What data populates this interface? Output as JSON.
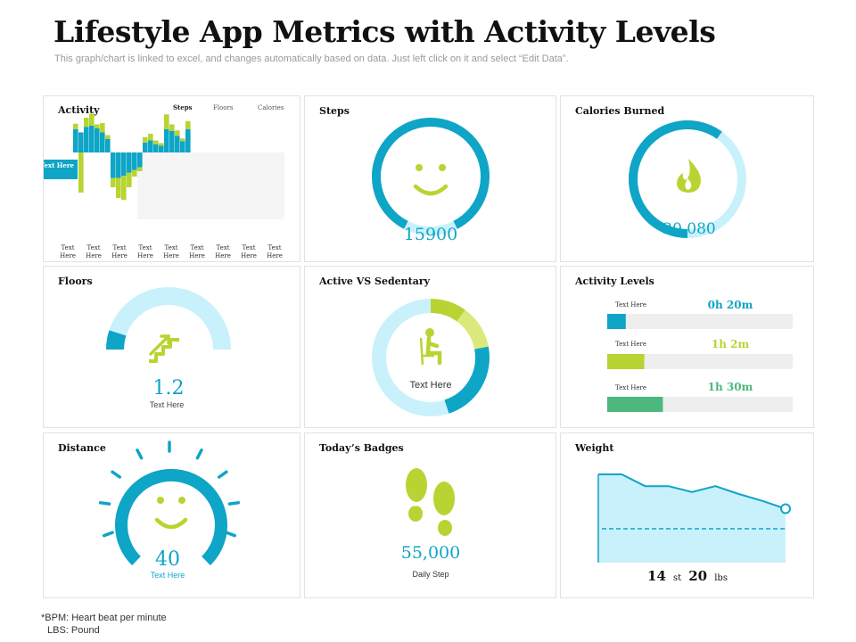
{
  "title": "Lifestyle App Metrics with Activity Levels",
  "subtitle": "This graph/chart is linked to excel, and changes automatically based on data. Just left click on it and select “Edit Data”.",
  "colors": {
    "teal": "#0ea5c6",
    "lime": "#b8d433",
    "light_blue": "#c9f1fb",
    "green": "#4cb87d",
    "grey": "#eeeeee"
  },
  "activity": {
    "title": "Activity",
    "legend": [
      "Steps",
      "Floors",
      "Calories"
    ],
    "callout": "Text Here",
    "xlabels": [
      "Text Here",
      "Text Here",
      "Text Here",
      "Text Here",
      "Text Here",
      "Text Here",
      "Text Here",
      "Text Here",
      "Text Here"
    ]
  },
  "chart_data": {
    "type": "bar",
    "title": "Activity",
    "series": [
      {
        "name": "Steps",
        "values": [
          35,
          30,
          38,
          40,
          36,
          30,
          20,
          -38,
          -38,
          -35,
          -30,
          -26,
          -22,
          15,
          18,
          12,
          10,
          35,
          32,
          25,
          17,
          35
        ]
      },
      {
        "name": "Floors",
        "values": [
          0,
          0,
          0,
          0,
          0,
          0,
          0,
          0,
          0,
          0,
          0,
          0,
          0,
          0,
          0,
          0,
          0,
          0,
          0,
          0,
          0,
          0
        ]
      },
      {
        "name": "Calories",
        "values": [
          8,
          -60,
          14,
          18,
          6,
          14,
          6,
          -14,
          -30,
          -36,
          -22,
          -10,
          -6,
          8,
          10,
          6,
          4,
          22,
          10,
          8,
          4,
          12
        ]
      }
    ],
    "ylim": [
      -100,
      100
    ]
  },
  "steps": {
    "title": "Steps",
    "value": "15900",
    "progress": 0.85
  },
  "calories": {
    "title": "Calories Burned",
    "value": "20,080",
    "progress": 0.6
  },
  "floors": {
    "title": "Floors",
    "value": "1.2",
    "sub": "Text Here",
    "progress": 0.1
  },
  "active": {
    "title": "Active VS Sedentary",
    "center_label": "Text Here",
    "segments": [
      {
        "name": "lime",
        "fraction": 0.1
      },
      {
        "name": "light_lime",
        "fraction": 0.12
      },
      {
        "name": "teal",
        "fraction": 0.23
      },
      {
        "name": "light_blue",
        "fraction": 0.55
      }
    ]
  },
  "levels": {
    "title": "Activity Levels",
    "items": [
      {
        "label": "Text Here",
        "value": "0h 20m",
        "fraction": 0.1,
        "color": "#0ea5c6"
      },
      {
        "label": "Text Here",
        "value": "1h 2m",
        "fraction": 0.2,
        "color": "#b8d433"
      },
      {
        "label": "Text Here",
        "value": "1h 30m",
        "fraction": 0.3,
        "color": "#4cb87d"
      }
    ]
  },
  "distance": {
    "title": "Distance",
    "value": "40",
    "sub": "Text Here",
    "progress": 0.75
  },
  "badges": {
    "title": "Today’s Badges",
    "value": "55,000",
    "sub": "Daily Step"
  },
  "weight": {
    "title": "Weight",
    "value_st": "14",
    "unit_st": "st",
    "value_lbs": "20",
    "unit_lbs": "lbs",
    "series": [
      100,
      100,
      88,
      88,
      82,
      88,
      80,
      73,
      65
    ]
  },
  "footnotes": [
    "*BPM: Heart beat per minute",
    "LBS: Pound"
  ]
}
